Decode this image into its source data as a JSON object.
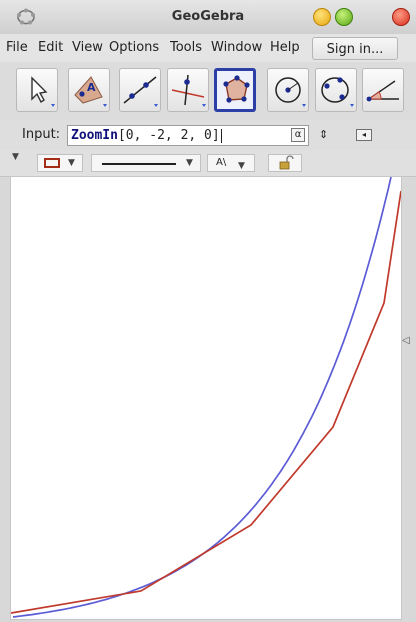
{
  "window": {
    "title": "GeoGebra",
    "app_icon": "geogebra-logo-icon"
  },
  "menubar": {
    "items": [
      "File",
      "Edit",
      "View",
      "Options",
      "Tools",
      "Window",
      "Help"
    ],
    "sign_in_label": "Sign in..."
  },
  "toolbar": {
    "tools": [
      {
        "icon": "move-arrow-icon"
      },
      {
        "icon": "point-icon"
      },
      {
        "icon": "line-through-two-points-icon"
      },
      {
        "icon": "perpendicular-line-icon"
      },
      {
        "icon": "polygon-icon",
        "selected": true
      },
      {
        "icon": "circle-with-center-icon"
      },
      {
        "icon": "conic-through-points-icon"
      },
      {
        "icon": "angle-icon"
      }
    ]
  },
  "input_bar": {
    "label": "Input:",
    "command": "ZoomIn",
    "args": "[0, -2, 2, 0]",
    "alpha_symbol": "α",
    "spinner_symbol": "⇕",
    "help_icon": "input-help-icon"
  },
  "style_bar": {
    "color_swatch": "#a52d18",
    "label_button_text": "A\\"
  },
  "graphics": {
    "curve_a_color": "#c0392b",
    "curve_b_color": "#5b5bd6"
  }
}
